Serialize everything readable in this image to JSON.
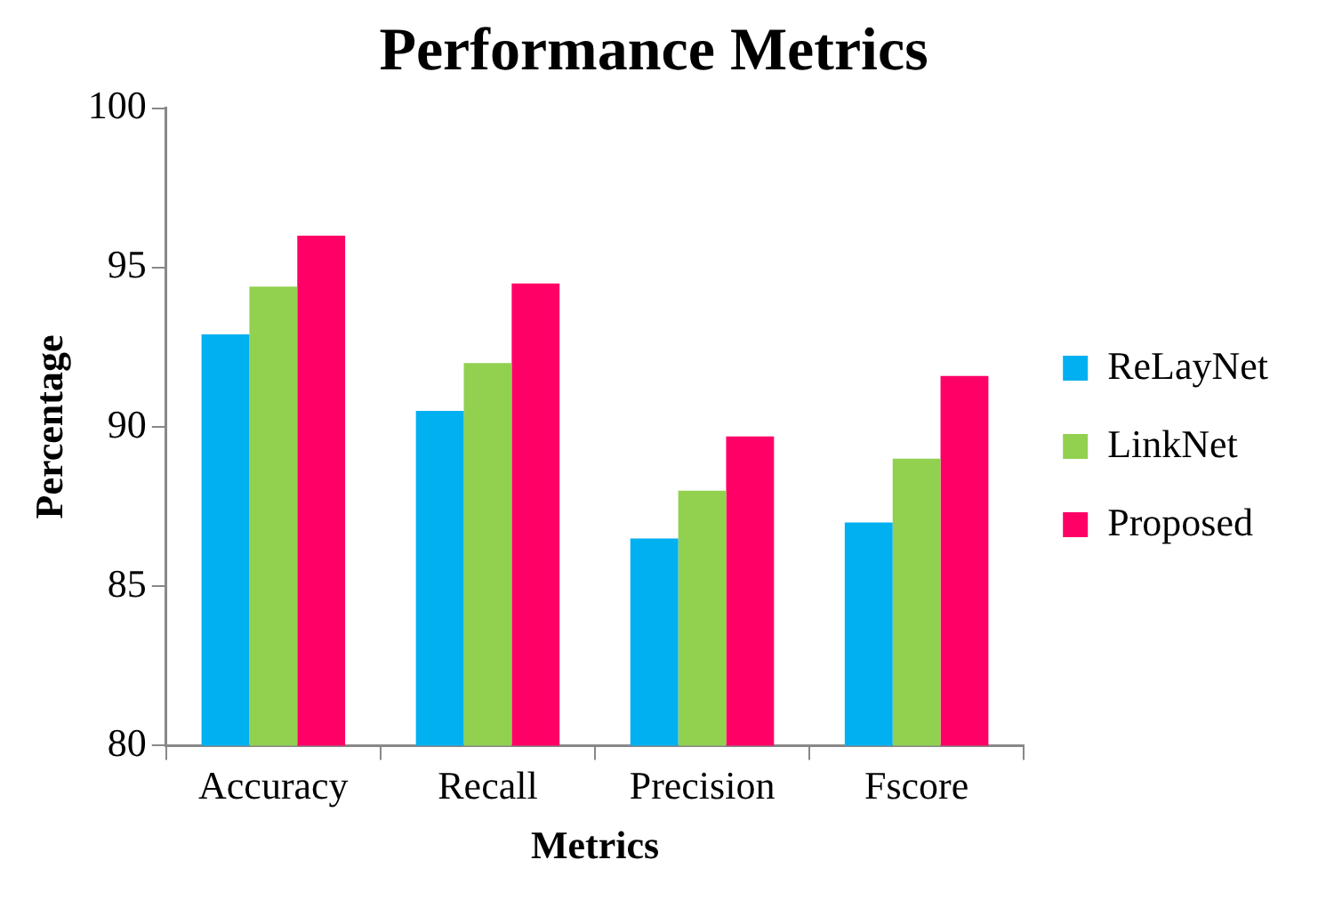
{
  "chart_data": {
    "type": "bar",
    "title": "Performance Metrics",
    "xlabel": "Metrics",
    "ylabel": "Percentage",
    "categories": [
      "Accuracy",
      "Recall",
      "Precision",
      "Fscore"
    ],
    "series": [
      {
        "name": "ReLayNet",
        "color": "#00b0f0",
        "values": [
          92.9,
          90.5,
          86.5,
          87.0
        ]
      },
      {
        "name": "LinkNet",
        "color": "#92d050",
        "values": [
          94.4,
          92.0,
          88.0,
          89.0
        ]
      },
      {
        "name": "Proposed",
        "color": "#ff0066",
        "values": [
          96.0,
          94.5,
          89.7,
          91.6
        ]
      }
    ],
    "ylim": [
      80,
      100
    ],
    "yticks": [
      80,
      85,
      90,
      95,
      100
    ],
    "legend": "right"
  }
}
